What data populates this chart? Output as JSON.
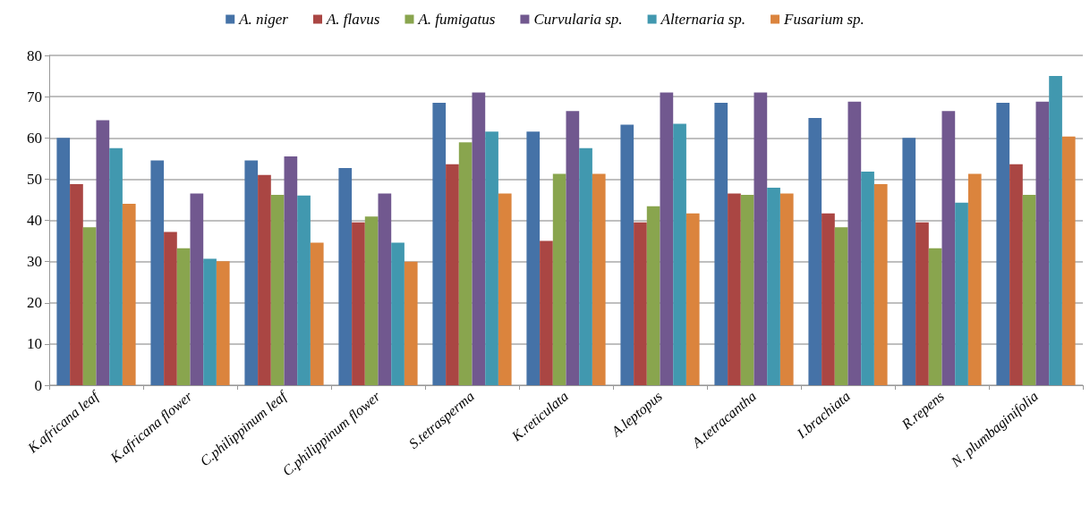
{
  "chart_data": {
    "type": "bar",
    "categories": [
      "K.africana leaf",
      "K.africana flower",
      "C.philippinum leaf",
      "C.philippinum flower",
      "S.tetrasperma",
      "K.reticulata",
      "A.leptopus",
      "A.tetracantha",
      "I.brachiata",
      "R.repens",
      "N. plumbaginifolia"
    ],
    "series": [
      {
        "name": "A. niger",
        "color": "#4572a7",
        "values": [
          60,
          54.5,
          54.5,
          52.7,
          68.5,
          61.5,
          63.2,
          68.5,
          64.8,
          60,
          68.5
        ]
      },
      {
        "name": "A. flavus",
        "color": "#aa4643",
        "values": [
          48.8,
          37.2,
          51,
          39.5,
          53.6,
          35,
          39.5,
          46.5,
          41.7,
          39.5,
          53.6
        ]
      },
      {
        "name": "A. fumigatus",
        "color": "#89a54e",
        "values": [
          38.3,
          33.2,
          46.2,
          40.9,
          58.9,
          51.3,
          43.4,
          46.2,
          38.3,
          33.2,
          46.2
        ]
      },
      {
        "name": "Curvularia sp.",
        "color": "#71588f",
        "values": [
          64.3,
          46.5,
          55.5,
          46.5,
          71,
          66.5,
          71,
          71,
          68.8,
          66.5,
          68.8
        ]
      },
      {
        "name": "Alternaria sp.",
        "color": "#4198af",
        "values": [
          57.5,
          30.7,
          46,
          34.6,
          61.5,
          57.5,
          63.4,
          47.9,
          51.8,
          44.3,
          75
        ]
      },
      {
        "name": "Fusarium sp.",
        "color": "#db843d",
        "values": [
          44,
          30.1,
          34.6,
          30,
          46.5,
          51.3,
          41.7,
          46.5,
          48.8,
          51.3,
          60.3
        ]
      }
    ],
    "ylim": [
      0,
      80
    ],
    "yticks": [
      0,
      10,
      20,
      30,
      40,
      50,
      60,
      70,
      80
    ],
    "grid": "y",
    "legend": "top"
  }
}
